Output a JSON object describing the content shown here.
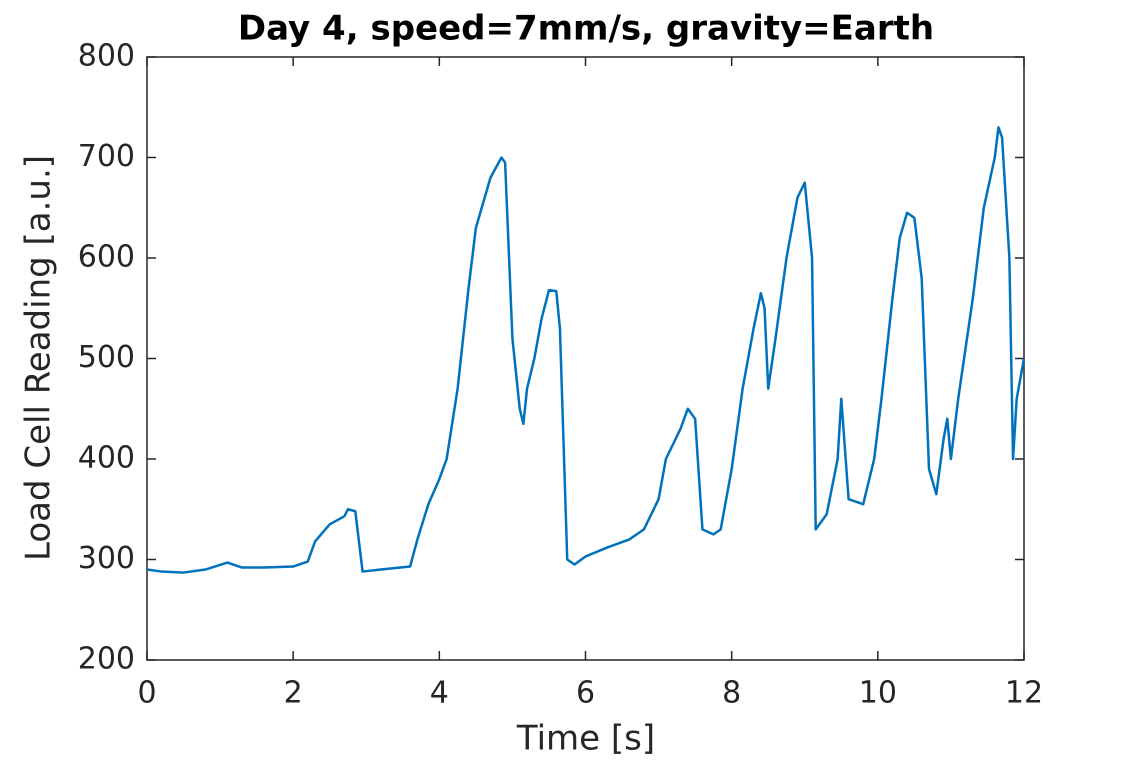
{
  "chart_data": {
    "type": "line",
    "title": "Day 4, speed=7mm/s, gravity=Earth",
    "x_label": "Time [s]",
    "y_label": "Load Cell Reading [a.u.]",
    "xlim": [
      0,
      12
    ],
    "ylim": [
      200,
      800
    ],
    "xticks": [
      0,
      2,
      4,
      6,
      8,
      10,
      12
    ],
    "yticks": [
      200,
      300,
      400,
      500,
      600,
      700,
      800
    ],
    "series": [
      {
        "color": "#0072bd",
        "x": [
          0,
          0.2,
          0.5,
          0.8,
          1.1,
          1.3,
          1.6,
          2.0,
          2.2,
          2.3,
          2.5,
          2.7,
          2.75,
          2.85,
          2.95,
          3.2,
          3.6,
          3.7,
          3.85,
          4.0,
          4.1,
          4.25,
          4.4,
          4.5,
          4.7,
          4.85,
          4.9,
          5.0,
          5.1,
          5.15,
          5.2,
          5.3,
          5.4,
          5.5,
          5.6,
          5.65,
          5.75,
          5.85,
          6.0,
          6.3,
          6.6,
          6.8,
          7.0,
          7.1,
          7.3,
          7.4,
          7.5,
          7.6,
          7.75,
          7.85,
          8.0,
          8.15,
          8.3,
          8.4,
          8.45,
          8.5,
          8.6,
          8.75,
          8.9,
          9.0,
          9.1,
          9.15,
          9.3,
          9.45,
          9.5,
          9.6,
          9.8,
          9.95,
          10.05,
          10.2,
          10.3,
          10.4,
          10.5,
          10.6,
          10.7,
          10.8,
          10.9,
          10.95,
          11.0,
          11.1,
          11.3,
          11.45,
          11.6,
          11.65,
          11.7,
          11.8,
          11.85,
          11.9,
          12.0
        ],
        "values": [
          290,
          288,
          287,
          290,
          297,
          292,
          292,
          293,
          298,
          318,
          335,
          343,
          350,
          348,
          288,
          290,
          293,
          320,
          355,
          380,
          400,
          470,
          570,
          630,
          680,
          700,
          695,
          520,
          450,
          435,
          470,
          500,
          540,
          568,
          567,
          530,
          300,
          295,
          303,
          312,
          320,
          330,
          360,
          400,
          430,
          450,
          440,
          330,
          325,
          330,
          390,
          470,
          530,
          565,
          550,
          470,
          520,
          600,
          660,
          675,
          600,
          330,
          345,
          400,
          460,
          360,
          355,
          400,
          460,
          560,
          620,
          645,
          640,
          580,
          390,
          365,
          420,
          440,
          400,
          460,
          560,
          650,
          700,
          730,
          720,
          600,
          400,
          460,
          500
        ]
      }
    ]
  }
}
